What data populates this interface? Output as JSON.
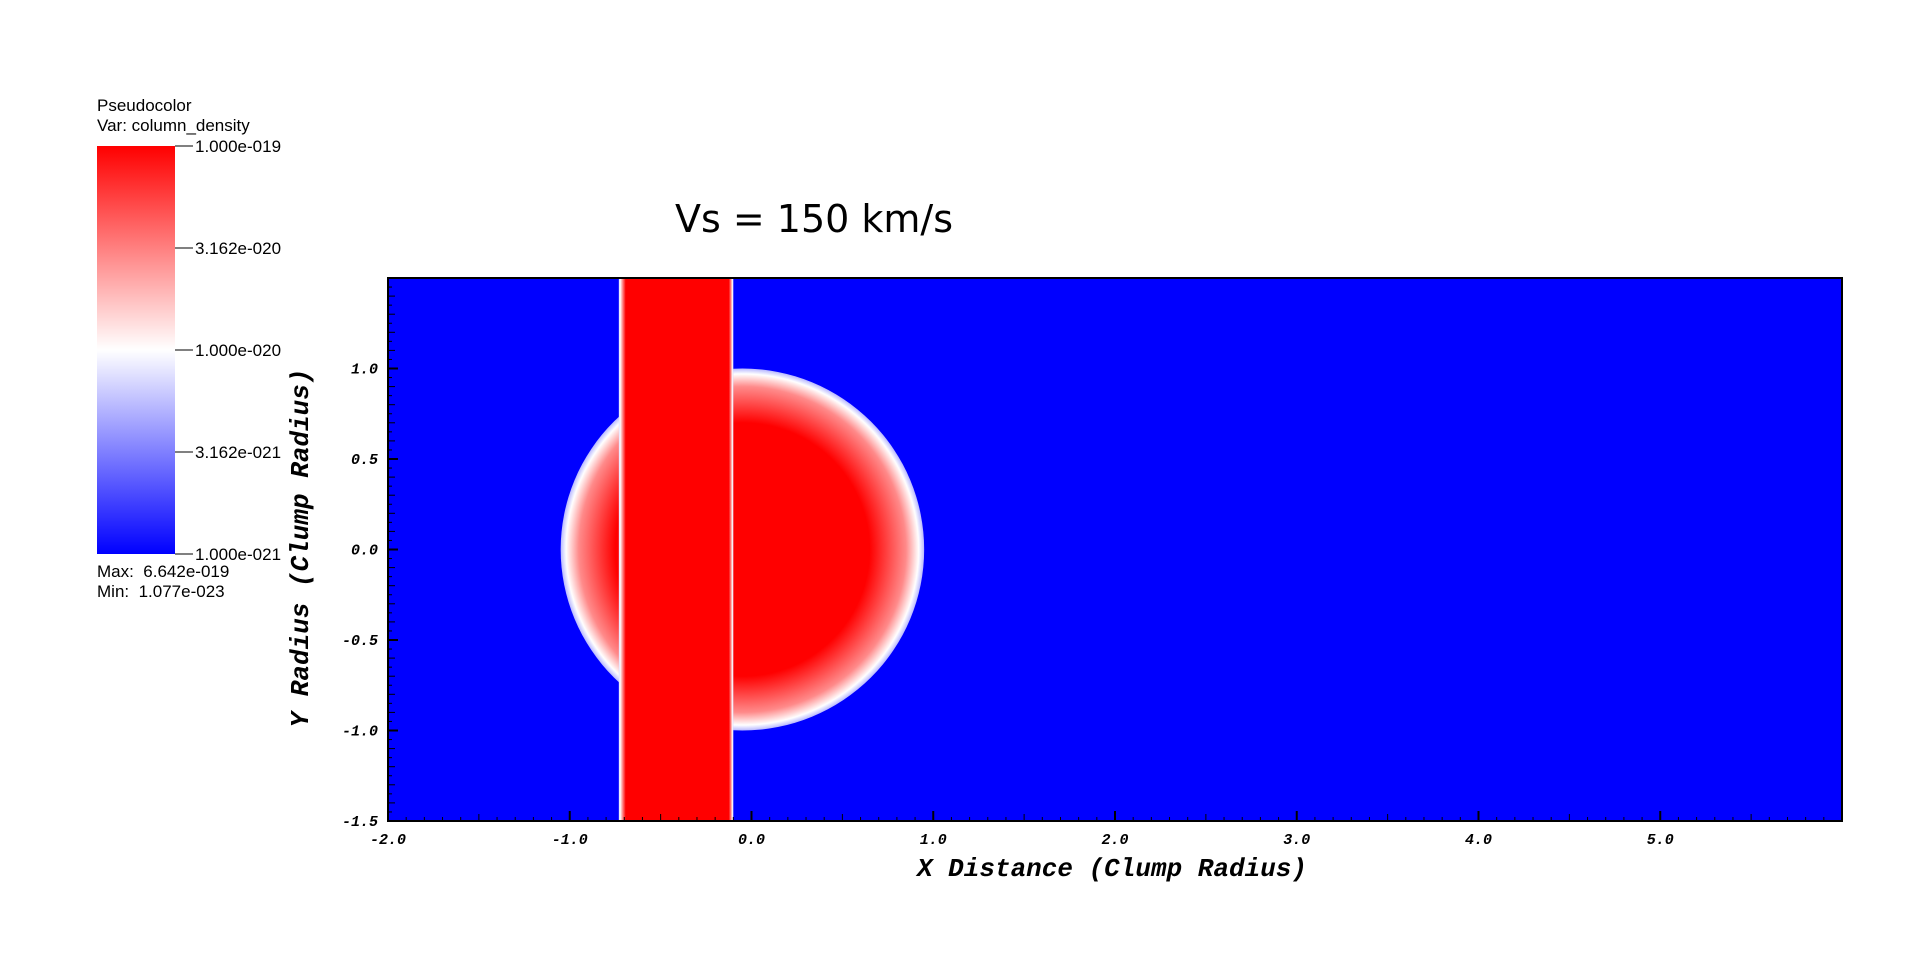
{
  "legend": {
    "plot_type": "Pseudocolor",
    "var_line": "Var: column_density",
    "tick_labels": [
      "1.000e-019",
      "3.162e-020",
      "1.000e-020",
      "3.162e-021",
      "1.000e-021"
    ],
    "tick_values": [
      1e-19,
      3.162e-20,
      1e-20,
      3.162e-21,
      1e-21
    ],
    "max_label": "Max:",
    "max_value": "6.642e-019",
    "min_label": "Min:",
    "min_value": "1.077e-023",
    "colors": {
      "high": "#ff0000",
      "mid": "#ffffff",
      "low": "#0000ff"
    },
    "scale": "log"
  },
  "chart_data": {
    "type": "heatmap",
    "title": "Vs = 150 km/s",
    "xlabel": "X Distance (Clump Radius)",
    "ylabel": "Y Radius (Clump Radius)",
    "xlim": [
      -2.0,
      6.0
    ],
    "ylim": [
      -1.5,
      1.5
    ],
    "x_ticks": [
      -2.0,
      -1.0,
      0.0,
      1.0,
      2.0,
      3.0,
      4.0,
      5.0
    ],
    "x_tick_labels": [
      "-2.0",
      "-1.0",
      "0.0",
      "1.0",
      "2.0",
      "3.0",
      "4.0",
      "5.0"
    ],
    "y_ticks": [
      -1.5,
      -1.0,
      -0.5,
      0.0,
      0.5,
      1.0
    ],
    "y_tick_labels": [
      "-1.5",
      "-1.0",
      "-0.5",
      "0.0",
      "0.5",
      "1.0"
    ],
    "grid": false,
    "background_color": "#0000ff",
    "field_color": "#ff0000",
    "features": [
      {
        "kind": "vertical-band",
        "x_min": -0.73,
        "x_max": -0.1
      },
      {
        "kind": "half-disc",
        "center_x": -0.05,
        "center_y": 0.0,
        "radius": 1.0
      }
    ]
  }
}
